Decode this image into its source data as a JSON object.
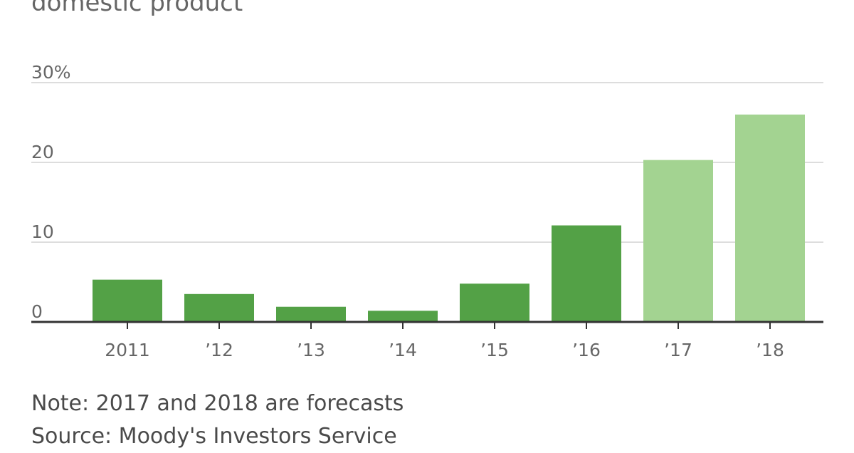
{
  "chart_data": {
    "type": "bar",
    "title": "domestic product",
    "categories": [
      "2011",
      "’12",
      "’13",
      "’14",
      "’15",
      "’16",
      "’17",
      "’18"
    ],
    "values": [
      5.3,
      3.5,
      1.9,
      1.4,
      4.8,
      12.1,
      20.3,
      26.0
    ],
    "forecast": [
      false,
      false,
      false,
      false,
      false,
      false,
      true,
      true
    ],
    "y_ticks": [
      {
        "value": 30,
        "label": "30%"
      },
      {
        "value": 20,
        "label": "20"
      },
      {
        "value": 10,
        "label": "10"
      },
      {
        "value": 0,
        "label": "0"
      }
    ],
    "ylim": [
      0,
      30
    ],
    "grid": true,
    "colors": {
      "actual": "#53a146",
      "forecast": "#a3d391",
      "gridline": "#dddddd",
      "axis": "#333333",
      "text": "#666666"
    }
  },
  "footer": {
    "note": "Note: 2017 and 2018 are forecasts",
    "source": "Source: Moody's Investors Service"
  }
}
